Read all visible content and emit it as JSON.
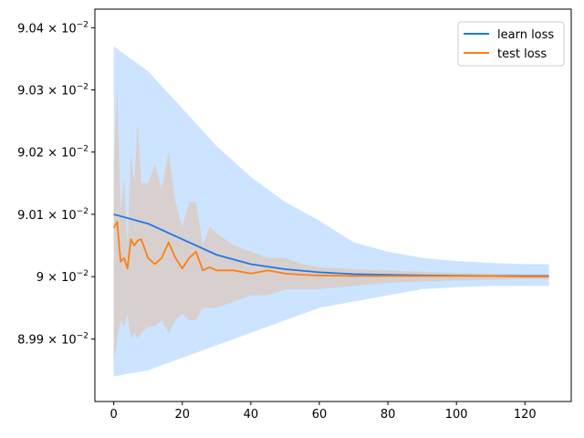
{
  "chart_data": {
    "type": "line",
    "title": "",
    "xlabel": "",
    "ylabel": "",
    "xlim": [
      -5.5,
      133.5
    ],
    "ylim": [
      0.0898,
      0.09043
    ],
    "x_ticks": [
      0,
      20,
      40,
      60,
      80,
      100,
      120
    ],
    "x_tick_labels": [
      "0",
      "20",
      "40",
      "60",
      "80",
      "100",
      "120"
    ],
    "y_ticks": [
      0.0899,
      0.09,
      0.0901,
      0.0902,
      0.0903,
      0.0904
    ],
    "y_tick_labels": [
      {
        "mantissa": "8.99",
        "base": "10",
        "exponent": "−2"
      },
      {
        "mantissa": "9",
        "base": "10",
        "exponent": "−2"
      },
      {
        "mantissa": "9.01",
        "base": "10",
        "exponent": "−2"
      },
      {
        "mantissa": "9.02",
        "base": "10",
        "exponent": "−2"
      },
      {
        "mantissa": "9.03",
        "base": "10",
        "exponent": "−2"
      },
      {
        "mantissa": "9.04",
        "base": "10",
        "exponent": "−2"
      }
    ],
    "y_scale": "log",
    "grid": false,
    "legend_position": "top-right",
    "series": [
      {
        "name": "learn loss",
        "color": "#1f77e8",
        "band_color": "#99c9ff",
        "x": [
          0,
          10,
          20,
          30,
          40,
          50,
          60,
          70,
          80,
          90,
          100,
          110,
          120,
          127
        ],
        "mean": [
          0.0901,
          0.090085,
          0.09006,
          0.090035,
          0.09002,
          0.090012,
          0.090007,
          0.090004,
          0.090003,
          0.090002,
          0.0900015,
          0.0900012,
          0.090001,
          0.090001
        ],
        "upper": [
          0.09037,
          0.09033,
          0.09027,
          0.09021,
          0.09016,
          0.09012,
          0.09009,
          0.090055,
          0.09004,
          0.09003,
          0.090025,
          0.090022,
          0.09002,
          0.09002
        ],
        "lower": [
          0.08984,
          0.08985,
          0.08987,
          0.08989,
          0.08991,
          0.08993,
          0.08995,
          0.08996,
          0.08997,
          0.08998,
          0.089983,
          0.089985,
          0.089985,
          0.089985
        ]
      },
      {
        "name": "test loss",
        "color": "#ff7f0e",
        "band_color": "#e0bfa8",
        "x": [
          0,
          1,
          2,
          3,
          4,
          5,
          6,
          7,
          8,
          10,
          12,
          14,
          16,
          18,
          20,
          22,
          24,
          26,
          28,
          30,
          35,
          40,
          45,
          50,
          55,
          60,
          70,
          80,
          90,
          100,
          110,
          120,
          127
        ],
        "mean": [
          0.090078,
          0.090088,
          0.090024,
          0.09003,
          0.090013,
          0.09006,
          0.09005,
          0.090058,
          0.09006,
          0.09003,
          0.09002,
          0.09003,
          0.090055,
          0.09003,
          0.090013,
          0.09003,
          0.09004,
          0.09001,
          0.090015,
          0.09001,
          0.09001,
          0.090005,
          0.09001,
          0.090005,
          0.090003,
          0.090002,
          0.090001,
          0.090001,
          0.090001,
          0.090001,
          0.090001,
          0.09,
          0.09
        ],
        "upper": [
          0.09018,
          0.0903,
          0.0901,
          0.09016,
          0.09005,
          0.0902,
          0.09015,
          0.09025,
          0.09015,
          0.09015,
          0.09018,
          0.09014,
          0.0902,
          0.09012,
          0.09008,
          0.09012,
          0.09012,
          0.09005,
          0.09008,
          0.09007,
          0.09005,
          0.09004,
          0.09003,
          0.09003,
          0.09002,
          0.090015,
          0.090012,
          0.09001,
          0.090008,
          0.090006,
          0.090005,
          0.090004,
          0.090004
        ],
        "lower": [
          0.08986,
          0.0899,
          0.08993,
          0.08992,
          0.08994,
          0.0899,
          0.08991,
          0.0899,
          0.08991,
          0.08992,
          0.08992,
          0.08993,
          0.08991,
          0.08993,
          0.08994,
          0.08993,
          0.08993,
          0.08995,
          0.08995,
          0.08995,
          0.08996,
          0.08997,
          0.08997,
          0.08998,
          0.08998,
          0.08998,
          0.089985,
          0.08999,
          0.089992,
          0.089994,
          0.089995,
          0.089996,
          0.089996
        ]
      }
    ]
  }
}
